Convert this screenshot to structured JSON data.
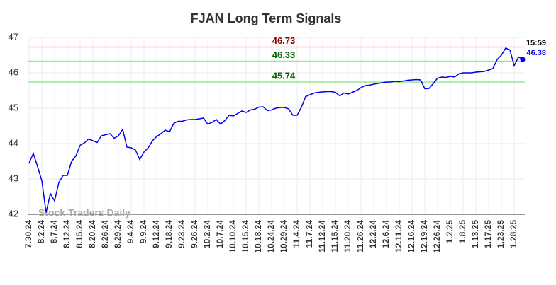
{
  "chart_data": {
    "type": "line",
    "title": "FJAN Long Term Signals",
    "categories": [
      "7.30.24",
      null,
      null,
      "8.2.24",
      null,
      null,
      "8.7.24",
      null,
      null,
      "8.12.24",
      null,
      null,
      "8.15.24",
      null,
      null,
      "8.20.24",
      null,
      null,
      "8.26.24",
      null,
      null,
      "8.29.24",
      null,
      null,
      "9.4.24",
      null,
      null,
      "9.9.24",
      null,
      null,
      "9.12.24",
      null,
      null,
      "9.18.24",
      null,
      null,
      "9.23.24",
      null,
      null,
      "9.26.24",
      null,
      null,
      "10.2.24",
      null,
      null,
      "10.7.24",
      null,
      null,
      "10.10.24",
      null,
      null,
      "10.15.24",
      null,
      null,
      "10.18.24",
      null,
      null,
      "10.24.24",
      null,
      null,
      "10.29.24",
      null,
      null,
      "11.4.24",
      null,
      null,
      "11.7.24",
      null,
      null,
      "11.12.24",
      null,
      null,
      "11.15.24",
      null,
      null,
      "11.20.24",
      null,
      null,
      "11.26.24",
      null,
      null,
      "12.2.24",
      null,
      null,
      "12.6.24",
      null,
      null,
      "12.11.24",
      null,
      null,
      "12.16.24",
      null,
      null,
      "12.19.24",
      null,
      null,
      "12.26.24",
      null,
      null,
      "1.2.25",
      null,
      null,
      "1.8.25",
      null,
      null,
      "1.13.25",
      null,
      null,
      "1.17.25",
      null,
      null,
      "1.23.25",
      null,
      null,
      "1.28.25",
      null,
      null
    ],
    "values": [
      43.45,
      43.72,
      43.35,
      42.95,
      42.05,
      42.58,
      42.38,
      42.9,
      43.1,
      43.1,
      43.5,
      43.65,
      43.95,
      44.02,
      44.13,
      44.08,
      44.03,
      44.22,
      44.25,
      44.28,
      44.15,
      44.22,
      44.4,
      43.9,
      43.88,
      43.82,
      43.55,
      43.76,
      43.88,
      44.08,
      44.2,
      44.28,
      44.38,
      44.33,
      44.57,
      44.63,
      44.63,
      44.67,
      44.68,
      44.68,
      44.7,
      44.72,
      44.55,
      44.6,
      44.68,
      44.55,
      44.65,
      44.8,
      44.78,
      44.85,
      44.92,
      44.88,
      44.95,
      44.97,
      45.03,
      45.04,
      44.93,
      44.95,
      45.0,
      45.02,
      45.02,
      44.98,
      44.8,
      44.8,
      45.03,
      45.33,
      45.38,
      45.43,
      45.45,
      45.46,
      45.47,
      45.47,
      45.45,
      45.35,
      45.43,
      45.4,
      45.45,
      45.5,
      45.58,
      45.64,
      45.65,
      45.68,
      45.7,
      45.72,
      45.74,
      45.74,
      45.76,
      45.75,
      45.77,
      45.79,
      45.8,
      45.81,
      45.8,
      45.55,
      45.56,
      45.7,
      45.85,
      45.88,
      45.87,
      45.9,
      45.88,
      45.97,
      46.0,
      46.0,
      46.0,
      46.02,
      46.03,
      46.04,
      46.08,
      46.12,
      46.38,
      46.5,
      46.7,
      46.65,
      46.2,
      46.45,
      46.38
    ],
    "color": "#0000ee",
    "ylim": [
      42,
      47
    ],
    "yticks": [
      42,
      43,
      44,
      45,
      46,
      47
    ],
    "grid": true,
    "signals": [
      {
        "value": 46.73,
        "line_color": "#ffb3b3",
        "label_color": "#8b0000"
      },
      {
        "value": 46.33,
        "line_color": "#90ee90",
        "label_color": "#006400"
      },
      {
        "value": 45.74,
        "line_color": "#90ee90",
        "label_color": "#006400"
      }
    ],
    "last_time": "15:59",
    "last_value": 46.38,
    "watermark": "Stock Traders Daily"
  }
}
